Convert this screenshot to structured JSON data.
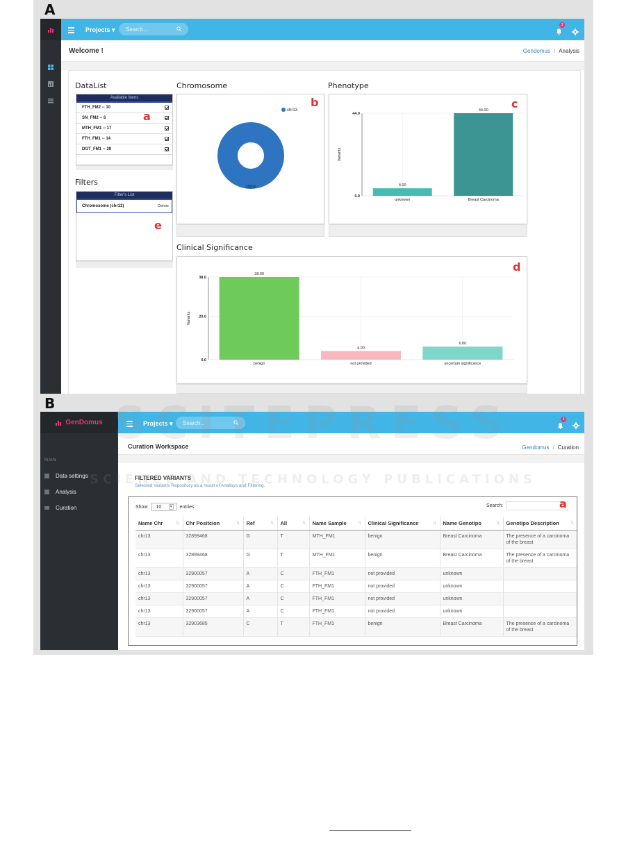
{
  "figure": {
    "letter_a": "A",
    "letter_b": "B",
    "watermark_big": "SCITEPRESS",
    "watermark_small": "SCIENCE AND TECHNOLOGY PUBLICATIONS"
  },
  "screen_a": {
    "topbar": {
      "projects": "Projects ▾",
      "search_placeholder": "Search...",
      "notif_count": "3"
    },
    "header": {
      "title": "Welcome !",
      "crumb_link": "Gendomus",
      "crumb_sep": "/",
      "crumb_current": "Analysis"
    },
    "datalist": {
      "title": "DataList",
      "head": "Available Items",
      "items": [
        {
          "label": "FTH_FM2 -- 10"
        },
        {
          "label": "SN_FM2 -- 6"
        },
        {
          "label": "MTH_FM1 -- 17"
        },
        {
          "label": "FTH_FM1 -- 14"
        },
        {
          "label": "DGT_FM1 -- 39"
        }
      ]
    },
    "filters": {
      "title": "Filters",
      "head": "Filter's List",
      "item": "Chromosome (chr13)",
      "delete": "Delete"
    },
    "labels": {
      "a": "a",
      "b": "b",
      "c": "c",
      "d": "d",
      "e": "e"
    },
    "chromosome": {
      "title": "Chromosome",
      "legend": "chr13",
      "slice_label": "100%",
      "color": "#2f74c0"
    },
    "phenotype": {
      "title": "Phenotype",
      "ylabel": "Variants",
      "color": "#3d9593",
      "color2": "#44bbb4"
    },
    "clinical": {
      "title": "Clinical Significance",
      "ylabel": "Variants"
    }
  },
  "chart_data": [
    {
      "type": "pie",
      "title": "Chromosome",
      "categories": [
        "chr13"
      ],
      "values": [
        100
      ],
      "legend": "top-right"
    },
    {
      "type": "bar",
      "title": "Phenotype",
      "ylabel": "Variants",
      "categories": [
        "unknown",
        "Breast Carcinoma"
      ],
      "values": [
        4.0,
        44.0
      ],
      "yticks": [
        "0.0",
        "44.0"
      ],
      "ylim": [
        0,
        44
      ],
      "value_labels": [
        "4.00",
        "44.00"
      ]
    },
    {
      "type": "bar",
      "title": "Clinical Significance",
      "ylabel": "Variants",
      "categories": [
        "benign",
        "not provided",
        "uncertain significance"
      ],
      "values": [
        38.0,
        4.0,
        6.0
      ],
      "yticks": [
        "0.0",
        "20.0",
        "38.0"
      ],
      "ylim": [
        0,
        38
      ],
      "value_labels": [
        "38.00",
        "4.00",
        "6.00"
      ],
      "colors": [
        "#6ecb5a",
        "#f7b8c0",
        "#7dd6c9"
      ]
    }
  ],
  "screen_b": {
    "brand": "GenDomus",
    "topbar": {
      "projects": "Projects ▾",
      "search_placeholder": "Search...",
      "notif_count": "3"
    },
    "sidebar": {
      "section": "MAIN",
      "items": [
        {
          "label": "Data settings"
        },
        {
          "label": "Analysis"
        },
        {
          "label": "Curation"
        }
      ]
    },
    "header": {
      "title": "Curation Workspace",
      "crumb_link": "Gendomus",
      "crumb_sep": "/",
      "crumb_current": "Curation"
    },
    "panel": {
      "title": "FILTERED VARIANTS",
      "subtitle": "Selected Variants Repository as a result of Analisys and Filtering."
    },
    "table": {
      "show_label": "Show",
      "entries_value": "10",
      "entries_label": "entries",
      "search_label": "Search:",
      "label_a": "a",
      "columns": [
        "Name Chr",
        "Chr Positcion",
        "Ref",
        "All",
        "Name Sample",
        "Clinical Significance",
        "Name Genotipo",
        "Genotipo Description"
      ],
      "rows": [
        [
          "chr13",
          "32899468",
          "G",
          "T",
          "MTH_FM1",
          "benign",
          "Breast Carcinoma",
          "The presence of a carcinoma of the breast"
        ],
        [
          "chr13",
          "32899468",
          "G",
          "T",
          "MTH_FM1",
          "benign",
          "Breast Carcinoma",
          "The presence of a carcinoma of the breast"
        ],
        [
          "chr13",
          "32900057",
          "A",
          "C",
          "FTH_FM1",
          "not provided",
          "unknown",
          ""
        ],
        [
          "chr13",
          "32900057",
          "A",
          "C",
          "FTH_FM1",
          "not provided",
          "unknown",
          ""
        ],
        [
          "chr13",
          "32900057",
          "A",
          "C",
          "FTH_FM1",
          "not provided",
          "unknown",
          ""
        ],
        [
          "chr13",
          "32900057",
          "A",
          "C",
          "FTH_FM1",
          "not provided",
          "unknown",
          ""
        ],
        [
          "chr13",
          "32903685",
          "C",
          "T",
          "FTH_FM1",
          "benign",
          "Breast Carcinoma",
          "The presence of a carcinoma of the breast"
        ]
      ]
    }
  }
}
